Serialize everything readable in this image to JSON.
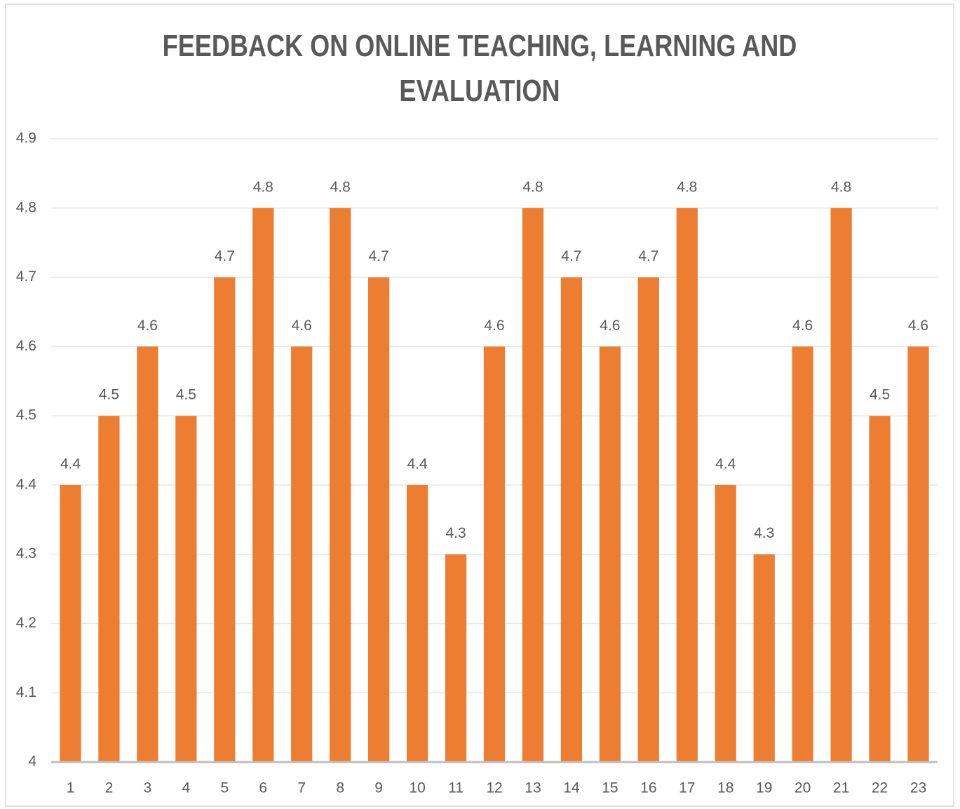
{
  "chart_data": {
    "type": "bar",
    "title": "FEEDBACK ON ONLINE TEACHING, LEARNING AND EVALUATION",
    "categories": [
      "1",
      "2",
      "3",
      "4",
      "5",
      "6",
      "7",
      "8",
      "9",
      "10",
      "11",
      "12",
      "13",
      "14",
      "15",
      "16",
      "17",
      "18",
      "19",
      "20",
      "21",
      "22",
      "23"
    ],
    "values": [
      4.4,
      4.5,
      4.6,
      4.5,
      4.7,
      4.8,
      4.6,
      4.8,
      4.7,
      4.4,
      4.3,
      4.6,
      4.8,
      4.7,
      4.6,
      4.7,
      4.8,
      4.4,
      4.3,
      4.6,
      4.8,
      4.5,
      4.6
    ],
    "color": "#ed7d31",
    "ylim": [
      4,
      4.9
    ],
    "yticks": [
      4,
      4.1,
      4.2,
      4.3,
      4.4,
      4.5,
      4.6,
      4.7,
      4.8,
      4.9
    ],
    "grid": true
  }
}
